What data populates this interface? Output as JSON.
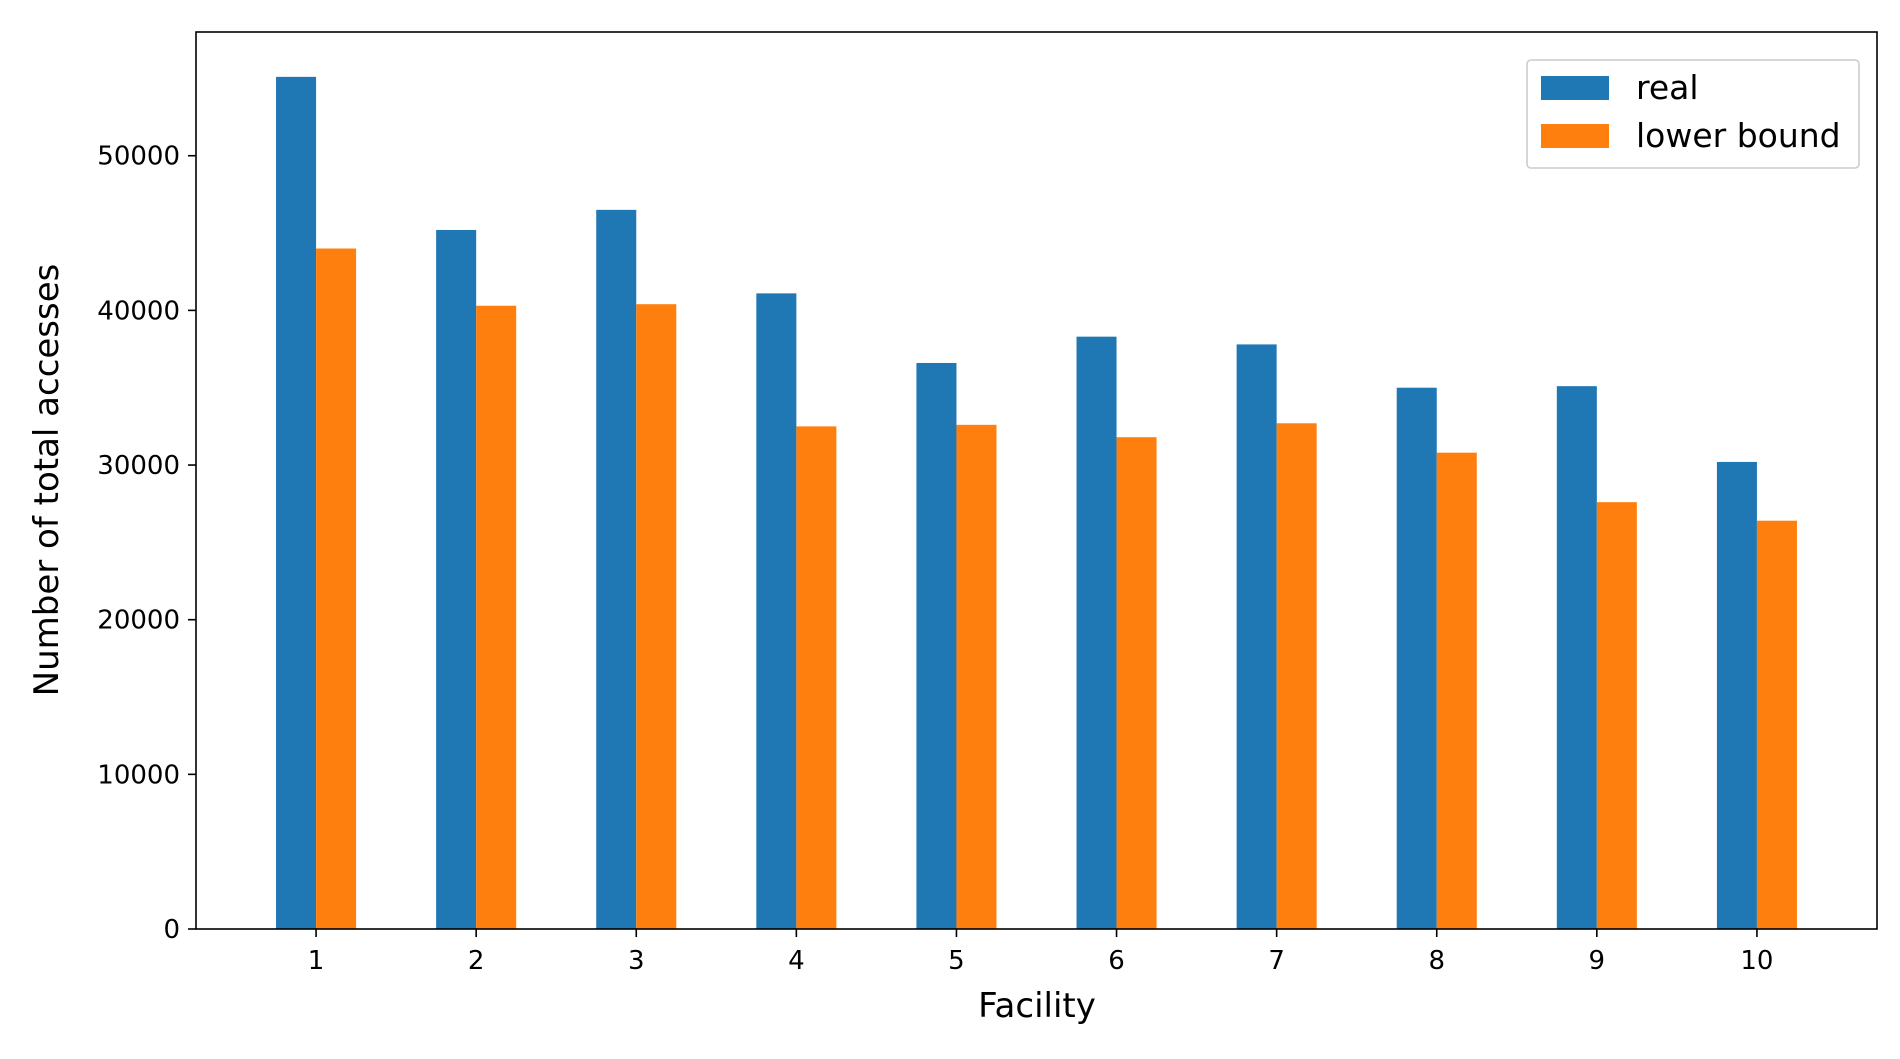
{
  "chart_data": {
    "type": "bar",
    "categories": [
      "1",
      "2",
      "3",
      "4",
      "5",
      "6",
      "7",
      "8",
      "9",
      "10"
    ],
    "series": [
      {
        "name": "real",
        "color": "#1f77b4",
        "values": [
          55100,
          45200,
          46500,
          41100,
          36600,
          38300,
          37800,
          35000,
          35100,
          30200
        ]
      },
      {
        "name": "lower bound",
        "color": "#ff7f0e",
        "values": [
          44000,
          40300,
          40400,
          32500,
          32600,
          31800,
          32700,
          30800,
          27600,
          26400
        ]
      }
    ],
    "xlabel": "Facility",
    "ylabel": "Number of total accesses",
    "ylim": [
      0,
      58000
    ],
    "yticks": [
      0,
      10000,
      20000,
      30000,
      40000,
      50000
    ],
    "legend_position": "top-right",
    "grid": false
  }
}
